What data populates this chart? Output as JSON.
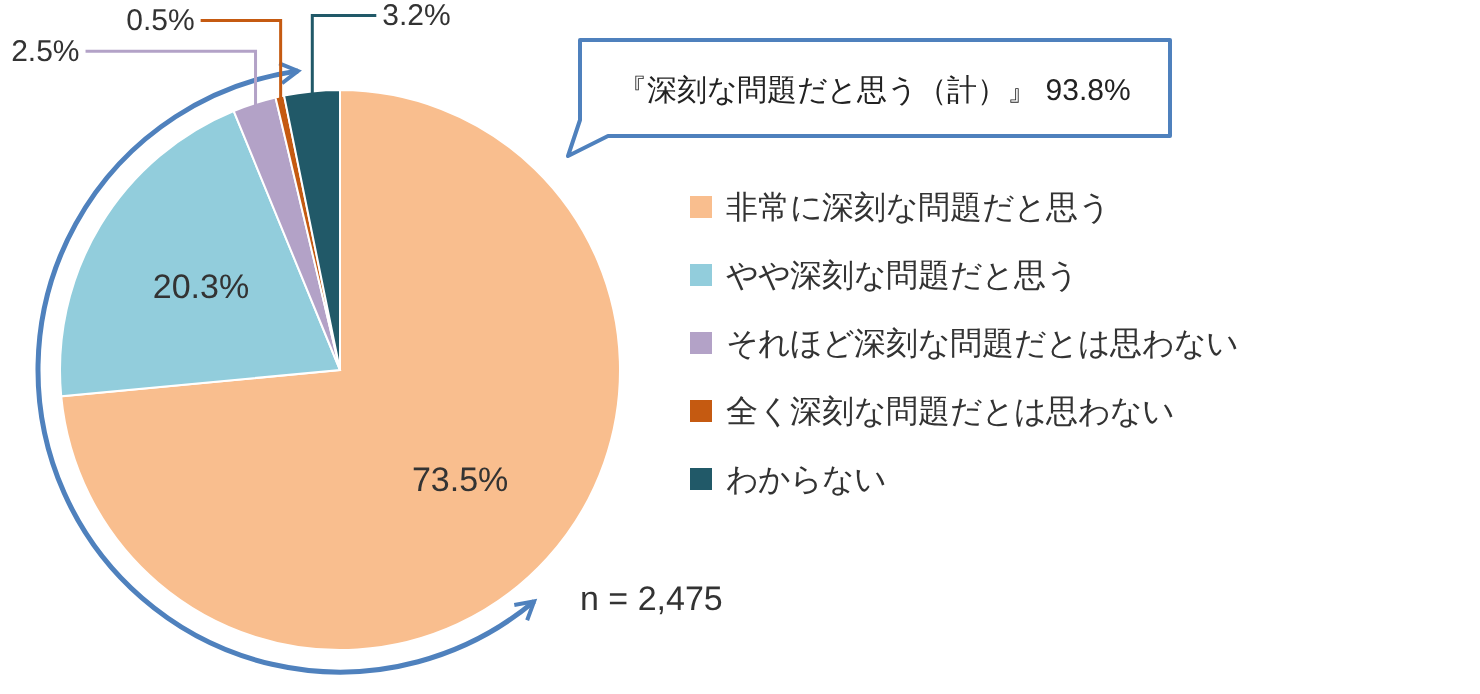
{
  "chart_data": {
    "type": "pie",
    "categories": [
      "非常に深刻な問題だと思う",
      "やや深刻な問題だと思う",
      "それほど深刻な問題だとは思わない",
      "全く深刻な問題だとは思わない",
      "わからない"
    ],
    "values": [
      73.5,
      20.3,
      2.5,
      0.5,
      3.2
    ],
    "colors": [
      "#f9be8e",
      "#92cddc",
      "#b3a2c7",
      "#c55a11",
      "#215968"
    ],
    "value_labels": [
      "73.5%",
      "20.3%",
      "2.5%",
      "0.5%",
      "3.2%"
    ],
    "legend": "right",
    "annotations": [
      "『深刻な問題だと思う（計）』 93.8%",
      "n = 2,475"
    ]
  }
}
